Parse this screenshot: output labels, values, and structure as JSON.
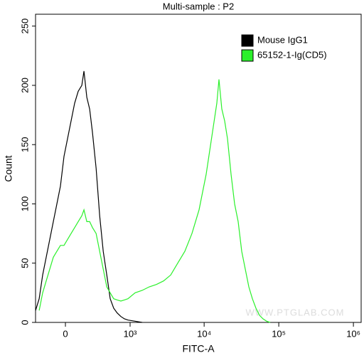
{
  "chart_data": {
    "type": "line",
    "title": "Multi-sample : P2",
    "xlabel": "FITC-A",
    "ylabel": "Count",
    "watermark": "WWW.PTGLAB.COM",
    "xscale": "biexponential",
    "x": [
      -293,
      -250,
      -211,
      -174,
      -139,
      -106,
      -74,
      -43,
      -12,
      18,
      49,
      80,
      112,
      146,
      167,
      196,
      227,
      259,
      303,
      350,
      401,
      457,
      517,
      583,
      656,
      741,
      832,
      934,
      1172,
      1465,
      1832,
      2285,
      2853,
      3557,
      4424,
      5513,
      6870,
      8546,
      9540,
      10650,
      11880,
      13250,
      14790,
      15800,
      17260,
      18840,
      20550,
      22940,
      25600,
      28560,
      31860,
      35560,
      39680,
      44270,
      49410,
      55120,
      61500,
      68640,
      76590
    ],
    "series": [
      {
        "name": "Mouse IgG1",
        "color": "#000000",
        "values": [
          10,
          20,
          40,
          55,
          70,
          85,
          100,
          115,
          140,
          155,
          170,
          185,
          195,
          200,
          212,
          190,
          180,
          160,
          130,
          90,
          60,
          40,
          20,
          12,
          8,
          5,
          3,
          2,
          1,
          0,
          null,
          null,
          null,
          null,
          null,
          null,
          null,
          null,
          null,
          null,
          null,
          null,
          null,
          null,
          null,
          null,
          null,
          null,
          null,
          null,
          null,
          null,
          null,
          null,
          null,
          null,
          null,
          null,
          null
        ]
      },
      {
        "name": "65152-1-Ig(CD5)",
        "color": "#2bf02b",
        "values": [
          null,
          10,
          25,
          35,
          45,
          55,
          60,
          65,
          65,
          70,
          75,
          80,
          85,
          90,
          95,
          85,
          85,
          80,
          75,
          60,
          45,
          30,
          25,
          20,
          19,
          18,
          19,
          20,
          25,
          27,
          30,
          32,
          35,
          40,
          50,
          60,
          75,
          95,
          110,
          125,
          145,
          165,
          185,
          205,
          180,
          170,
          155,
          125,
          100,
          85,
          60,
          45,
          30,
          20,
          12,
          6,
          3,
          1,
          0
        ]
      }
    ],
    "xlim": [
      -293,
      1270000
    ],
    "xticks": [
      0,
      {
        "value": 1000,
        "label": "10³"
      },
      {
        "value": 10000,
        "label": "10⁴"
      },
      {
        "value": 100000,
        "label": "10⁵"
      },
      {
        "value": 1000000,
        "label": "10⁶"
      }
    ],
    "ylim": [
      0,
      260
    ],
    "yticks": [
      0,
      50,
      100,
      150,
      200,
      250
    ],
    "legend": "top-right"
  }
}
